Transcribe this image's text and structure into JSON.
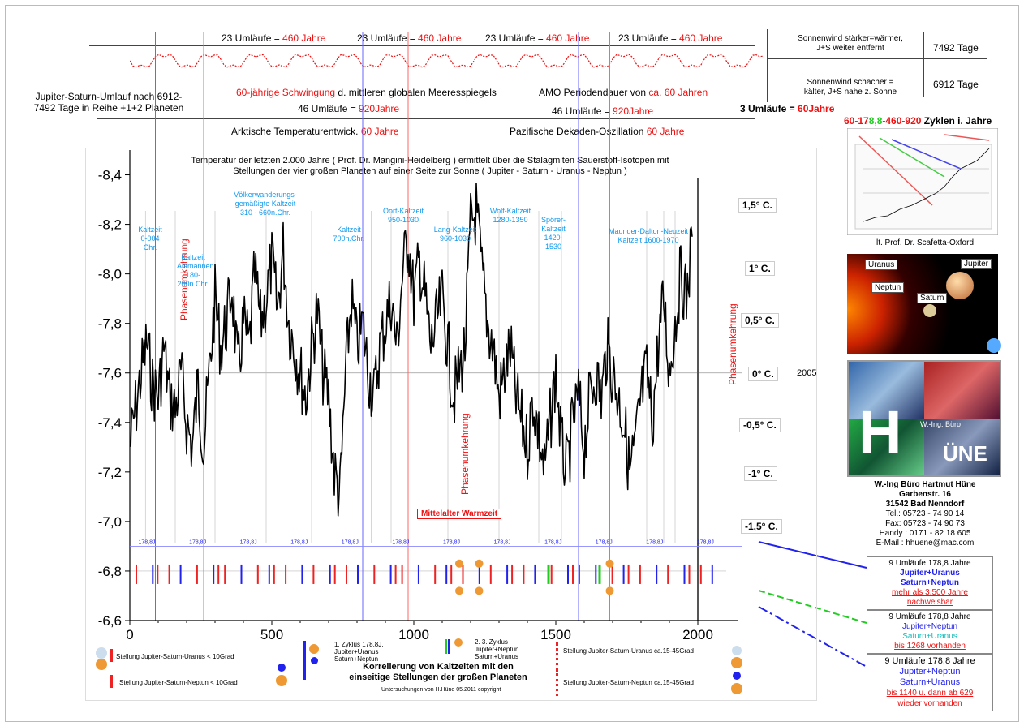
{
  "header": {
    "umlaeufe_23": [
      {
        "pre": "23 Umläufe = ",
        "red": "460 Jahre"
      },
      {
        "pre": "23 Umläufe = ",
        "red": "460 Jahre"
      },
      {
        "pre": "23 Umläufe = ",
        "red": "460 Jahre"
      },
      {
        "pre": "23 Umläufe = ",
        "red": "460 Jahre"
      }
    ],
    "left_title": "Jupiter-Saturn-Umlauf nach 6912-\n7492 Tage in Reihe +1+2 Planeten",
    "sixty_red": "60-jährige Schwingung",
    "sixty_rest": " d. mittleren globalen Meeresspiegels",
    "amo_pre": "AMO Periodendauer von ",
    "amo_red": "ca. 60 Jahren",
    "u46_1_pre": "46 Umläufe = ",
    "u46_1_red": "920Jahre",
    "u46_2_pre": "46 Umläufe = ",
    "u46_2_red": "920Jahre",
    "u3_pre": "3 Umläufe = ",
    "u3_red": "60Jahre",
    "arctic_pre": "Arktische Temperaturentwick. ",
    "arctic_red": "60 Jahre",
    "pacific_pre": "Pazifische Dekaden-Oszillation ",
    "pacific_red": "60 Jahre",
    "sun_strong": "Sonnenwind stärker=wärmer,\nJ+S weiter entfernt",
    "days_7492": "7492 Tage",
    "sun_weak": "Sonnenwind schächer =\nkälter, J+S nahe z. Sonne",
    "days_6912": "6912 Tage"
  },
  "cycles": {
    "p1": "60-17",
    "p2": "8,8",
    "p3": "-460-920",
    "p4": " Zyklen i. Jahre"
  },
  "scafetta_caption": "lt. Prof. Dr. Scafetta-Oxford",
  "planets": {
    "uranus": "Uranus",
    "jupiter": "Jupiter",
    "neptun": "Neptun",
    "saturn": "Saturn"
  },
  "logo": {
    "letters": "HÜNE",
    "sub": "W.-Ing. Büro"
  },
  "address": {
    "name": "W.-Ing Büro Hartmut Hüne",
    "street": "Garbenstr. 16",
    "city": "31542 Bad Nenndorf",
    "tel": "Tel.: 05723 - 74 90 14",
    "fax": "Fax: 05723 - 74 90 73",
    "handy": "Handy : 0171 - 82 18 605",
    "email": "E-Mail : hhuene@mac.com"
  },
  "infoboxes": [
    {
      "title": "9 Umläufe 178,8 Jahre",
      "l1": "Jupiter+Uranus",
      "l2": "Saturn+Neptun",
      "l3": "mehr als 3.500 Jahre",
      "l4": "nachweisbar"
    },
    {
      "title": "9 Umläufe 178,8 Jahre",
      "l1": "Jupiter+Neptun",
      "l2": "Saturn+Uranus",
      "l3": "bis 1268 vorhanden",
      "l4": ""
    },
    {
      "title": "9 Umläufe 178,8 Jahre",
      "l1": "Jupiter+Neptun",
      "l2": "Saturn+Uranus",
      "l3": "bis 1140 u. dann ab 629",
      "l4": "wieder vorhanden"
    }
  ],
  "plot_title": "Temperatur der letzten 2.000 Jahre ( Prof. Dr. Mangini-Heidelberg ) ermittelt über die Stalagmiten Sauerstoff-Isotopen mit\nStellungen der vier großen Planeten auf einer Seite zur Sonne ( Jupiter - Saturn - Uranus - Neptun )",
  "phase_label": "Phasenumkehrung",
  "warm_label": "Mittelalter Warmzeit",
  "year_2005": "2005",
  "legend": {
    "l1": "Stellung Jupiter-Saturn-Uranus < 10Grad",
    "l2": "Stellung Jupiter-Saturn-Neptun < 10Grad",
    "l3a": "1. Zyklus 178,8J.",
    "l3b": "Jupiter+Uranus",
    "l3c": "Saturn+Neptun",
    "l4a": "2. 3. Zyklus",
    "l4b": "Jupiter+Neptun",
    "l4c": "Saturn+Uranus",
    "l5": "Stellung Jupiter-Saturn-Uranus ca.15-45Grad",
    "l6": "Stellung Jupiter-Saturn-Neptun ca.15-45Grad",
    "center1": "Korrelierung von Kaltzeiten mit den",
    "center2": "einseitige Stellungen der großen Planeten",
    "copyright": "Untersuchungen von H.Hüne 05.2011 copyright"
  },
  "cold_periods": [
    {
      "label": "Kaltzeit\n0-004 Chr."
    },
    {
      "label": "Kaltzeit\nAlamannen\n180-200n.Chr."
    },
    {
      "label": "Völkerwanderungs-\ngemäßigte Kaltzeit\n310 - 660n.Chr."
    },
    {
      "label": "Kaltzeit\n700n.Chr."
    },
    {
      "label": "Oort-Kaltzeit\n950-1030"
    },
    {
      "label": "Lang-Kaltzeit\n960-1030"
    },
    {
      "label": "Wolf-Kaltzeit\n1280-1350"
    },
    {
      "label": "Spörer-\nKaltzeit\n1420-1530"
    },
    {
      "label": "Maunder-Dalton-Neuzeit\nKaltzeit 1600-1970"
    }
  ],
  "temp_labels": [
    "1,5° C.",
    "1° C.",
    "0,5° C.",
    "0° C.",
    "-0,5° C.",
    "-1° C.",
    "-1,5° C."
  ],
  "cycle_label": "178,8J",
  "chart_data": {
    "type": "line",
    "title": "Temperatur der letzten 2.000 Jahre ( Prof. Dr. Mangini-Heidelberg ) ermittelt über die Stalagmiten Sauerstoff-Isotopen mit Stellungen der vier großen Planeten auf einer Seite zur Sonne ( Jupiter - Saturn - Uranus - Neptun )",
    "xlim": [
      0,
      2100
    ],
    "ylim": [
      -6.6,
      -8.5
    ],
    "y_inverted": true,
    "x_ticks": [
      0,
      500,
      1000,
      1500,
      2000
    ],
    "y_ticks": [
      -8.4,
      -8.2,
      -8.0,
      -7.8,
      -7.6,
      -7.4,
      -7.2,
      -7.0,
      -6.8,
      -6.6
    ],
    "y_tick_labels": [
      "-8,4",
      "-8,2",
      "-8,0",
      "-7,8",
      "-7,6",
      "-7,4",
      "-7,2",
      "-7,0",
      "-6,8",
      "-6,6"
    ],
    "x": [
      0,
      20,
      40,
      60,
      80,
      100,
      120,
      140,
      160,
      180,
      200,
      220,
      240,
      260,
      280,
      300,
      320,
      340,
      360,
      380,
      400,
      420,
      440,
      460,
      480,
      500,
      520,
      540,
      560,
      580,
      600,
      620,
      640,
      660,
      680,
      700,
      720,
      740,
      760,
      780,
      800,
      820,
      840,
      860,
      880,
      900,
      920,
      940,
      960,
      980,
      1000,
      1020,
      1040,
      1060,
      1080,
      1100,
      1120,
      1140,
      1160,
      1180,
      1200,
      1220,
      1240,
      1260,
      1280,
      1300,
      1320,
      1340,
      1360,
      1380,
      1400,
      1420,
      1440,
      1460,
      1480,
      1500,
      1520,
      1540,
      1560,
      1580,
      1600,
      1620,
      1640,
      1660,
      1680,
      1700,
      1720,
      1740,
      1760,
      1780,
      1800,
      1820,
      1840,
      1860,
      1880,
      1900,
      1920,
      1940,
      1960,
      1980
    ],
    "y": [
      -7.3,
      -7.45,
      -7.6,
      -7.72,
      -7.55,
      -7.5,
      -7.7,
      -7.5,
      -7.45,
      -7.6,
      -7.4,
      -7.3,
      -7.55,
      -7.3,
      -7.6,
      -7.9,
      -7.7,
      -7.8,
      -7.95,
      -7.6,
      -7.8,
      -7.7,
      -8.0,
      -7.8,
      -7.9,
      -8.05,
      -7.85,
      -8.1,
      -7.8,
      -7.7,
      -7.6,
      -7.5,
      -7.7,
      -7.85,
      -7.6,
      -7.5,
      -7.2,
      -7.1,
      -7.6,
      -7.9,
      -7.7,
      -7.8,
      -7.6,
      -7.5,
      -7.7,
      -7.8,
      -7.9,
      -7.7,
      -8.0,
      -8.15,
      -7.9,
      -8.05,
      -7.9,
      -7.7,
      -7.8,
      -7.9,
      -7.7,
      -7.5,
      -7.6,
      -7.7,
      -8.2,
      -8.25,
      -8.0,
      -7.8,
      -7.7,
      -7.5,
      -7.6,
      -7.7,
      -7.5,
      -7.4,
      -7.3,
      -7.5,
      -7.35,
      -7.2,
      -7.4,
      -7.6,
      -7.3,
      -7.2,
      -7.4,
      -7.5,
      -7.3,
      -7.5,
      -7.6,
      -7.5,
      -7.7,
      -7.6,
      -7.5,
      -7.4,
      -7.2,
      -7.3,
      -7.5,
      -7.6,
      -7.4,
      -7.7,
      -7.9,
      -7.6,
      -7.8,
      -8.0,
      -7.9,
      -8.15
    ]
  }
}
